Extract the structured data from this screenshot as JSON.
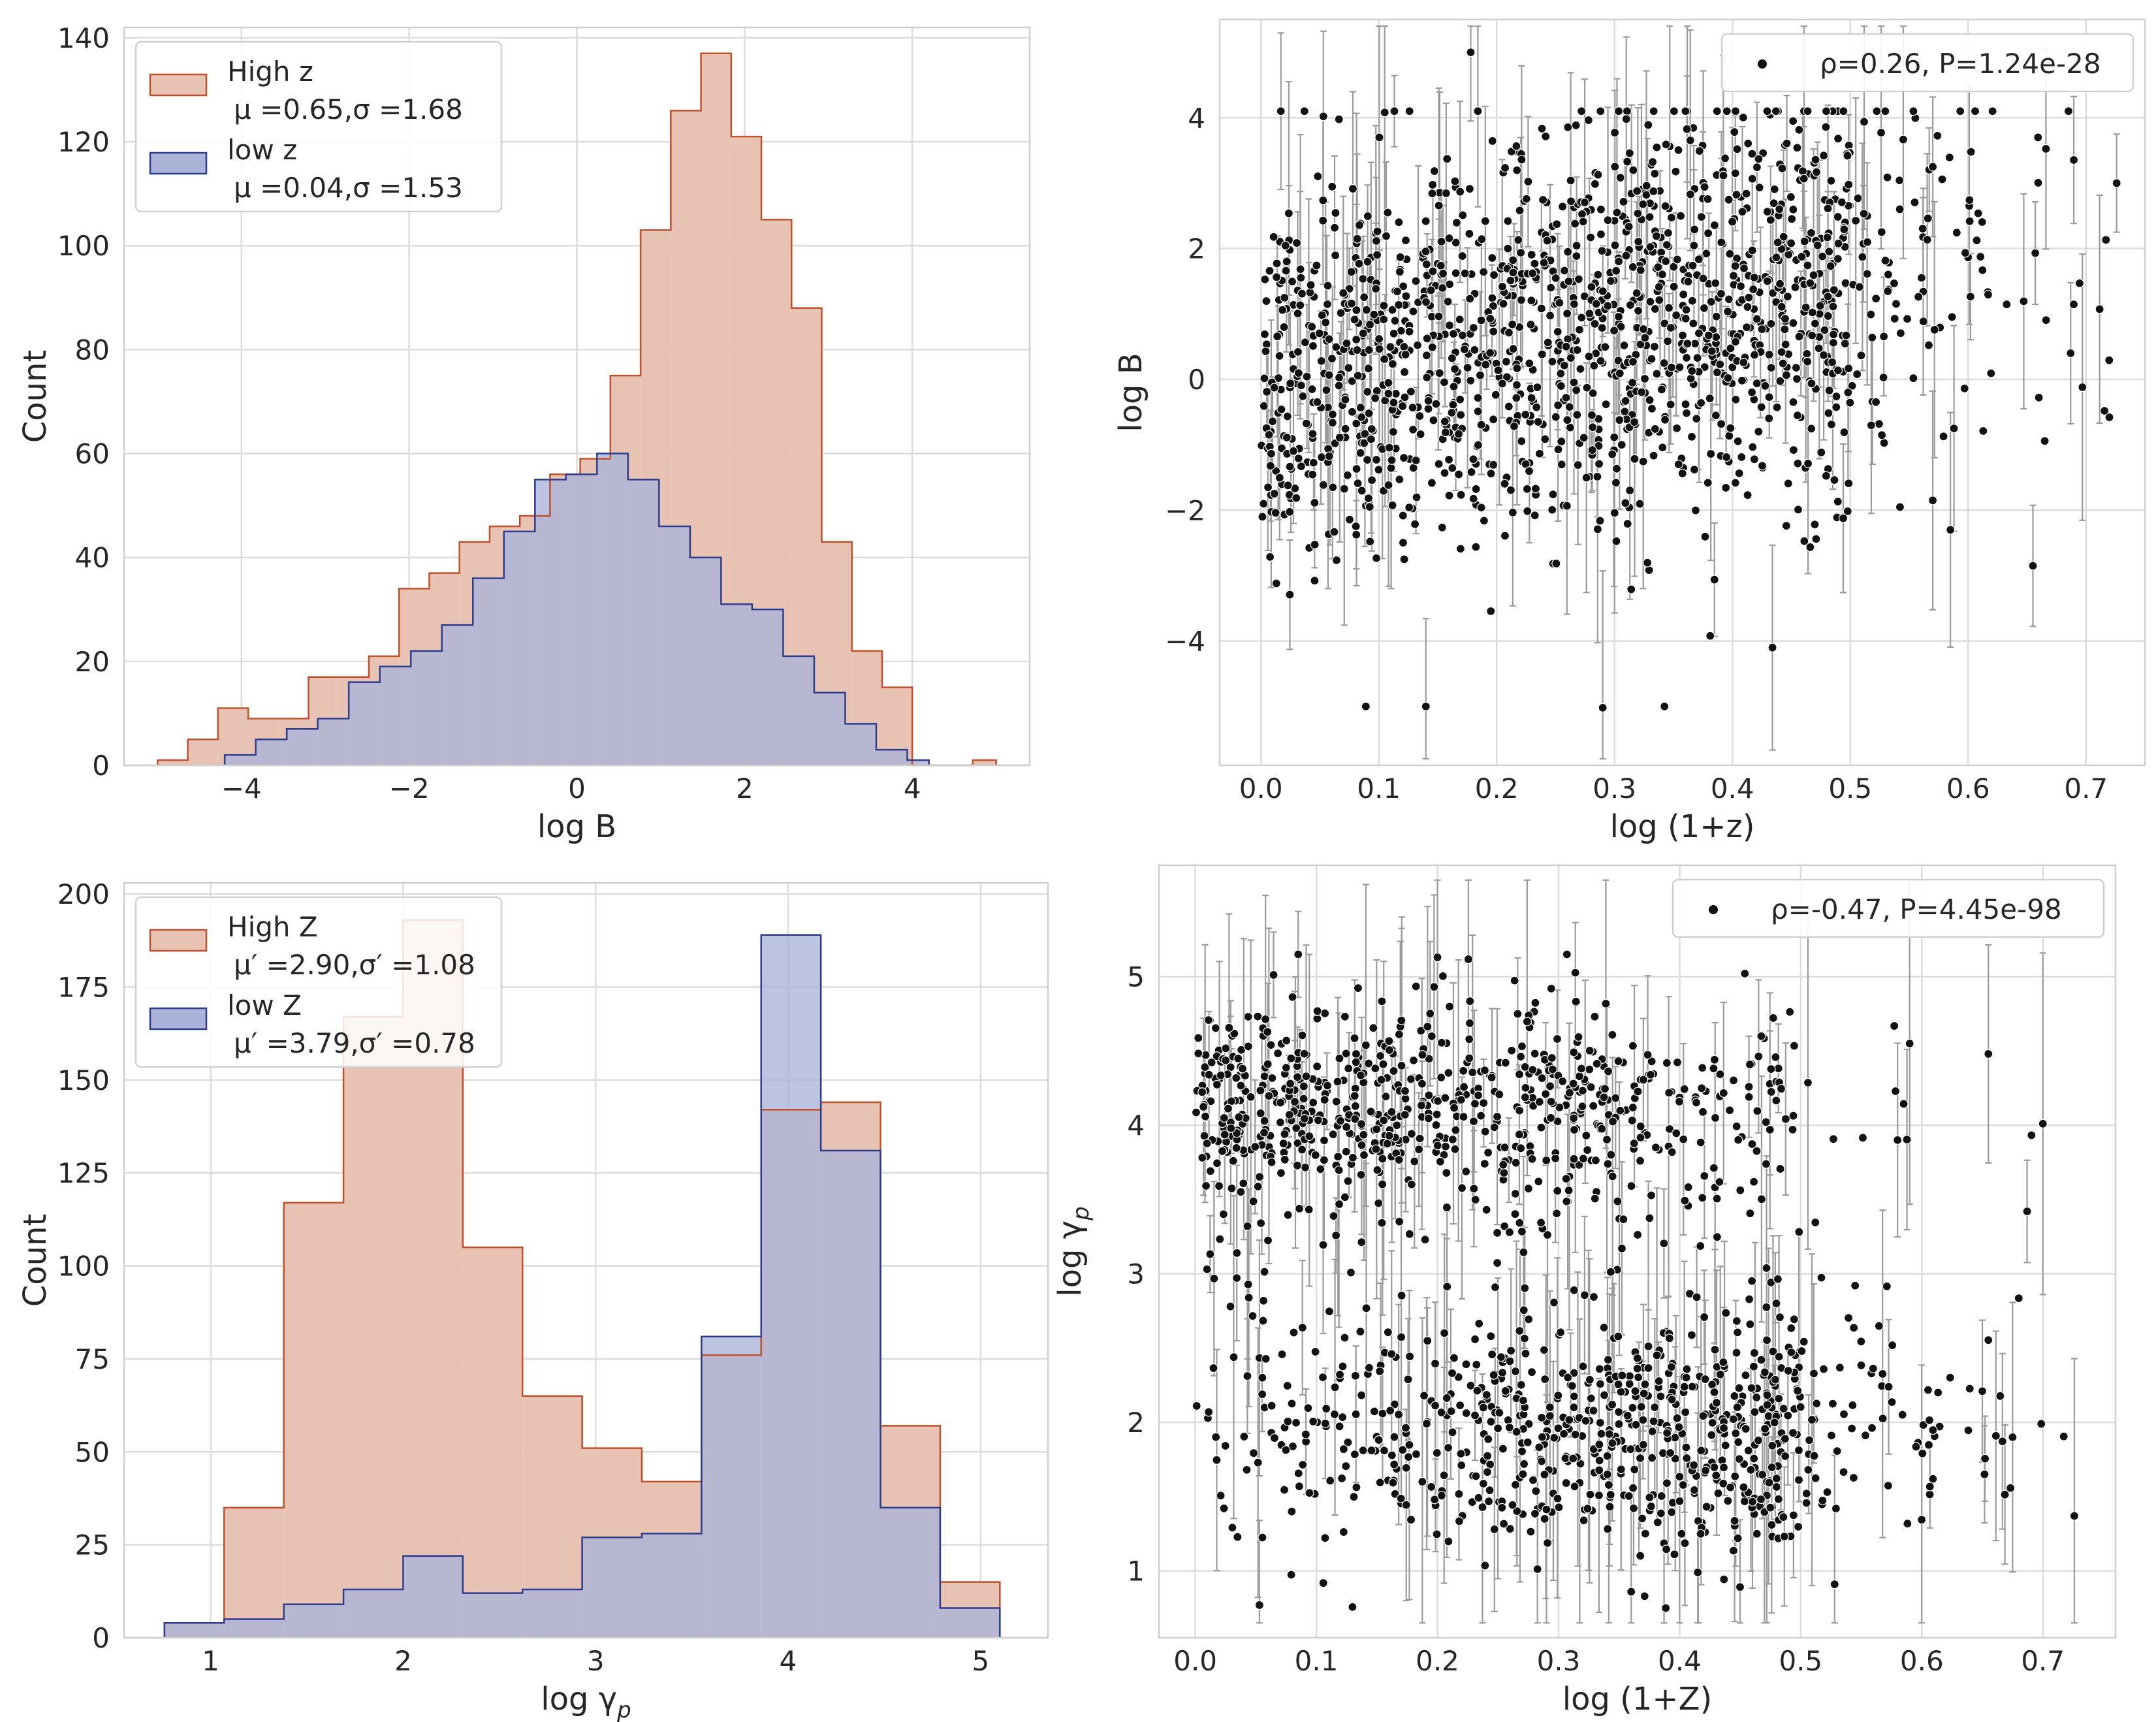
{
  "colors": {
    "high_fill": "#e8c3b4",
    "high_edge": "#c0502a",
    "low_fill": "#aab4d8",
    "low_edge": "#2c3d8f",
    "overlap": "#ab9aab",
    "point": "#111111",
    "errorbar": "#9a9a9a"
  },
  "chart_data": [
    {
      "id": "hist_logB",
      "type": "histogram",
      "xlabel": "log B",
      "ylabel": "Count",
      "xlim": [
        -5.4,
        5.4
      ],
      "ylim": [
        0,
        142
      ],
      "xticks": [
        -4,
        -2,
        0,
        2,
        4
      ],
      "xticklabels": [
        "−4",
        "−2",
        "0",
        "2",
        "4"
      ],
      "yticks": [
        0,
        20,
        40,
        60,
        80,
        100,
        120,
        140
      ],
      "yticklabels": [
        "0",
        "20",
        "40",
        "60",
        "80",
        "100",
        "120",
        "140"
      ],
      "legend_position": "upper left",
      "series": [
        {
          "name": "High z",
          "stat": "μ =0.65,σ =1.68",
          "edges": [
            -5.0,
            -4.64,
            -4.28,
            -3.92,
            -3.56,
            -3.2,
            -2.84,
            -2.48,
            -2.12,
            -1.76,
            -1.4,
            -1.04,
            -0.68,
            -0.32,
            0.04,
            0.4,
            0.76,
            1.12,
            1.48,
            1.84,
            2.2,
            2.56,
            2.92,
            3.28,
            3.64,
            4.0,
            4.36,
            4.72,
            5.0
          ],
          "counts": [
            1,
            5,
            11,
            9,
            9,
            17,
            17,
            21,
            34,
            37,
            43,
            46,
            48,
            56,
            59,
            75,
            103,
            126,
            137,
            121,
            105,
            88,
            43,
            22,
            15,
            0,
            0,
            1
          ]
        },
        {
          "name": "low z",
          "stat": "μ =0.04,σ =1.53",
          "edges": [
            -4.2,
            -3.83,
            -3.46,
            -3.09,
            -2.72,
            -2.35,
            -1.98,
            -1.61,
            -1.24,
            -0.87,
            -0.5,
            -0.13,
            0.24,
            0.61,
            0.98,
            1.35,
            1.72,
            2.09,
            2.46,
            2.83,
            3.2,
            3.57,
            3.94,
            4.2
          ],
          "counts": [
            2,
            5,
            7,
            9,
            16,
            19,
            22,
            27,
            36,
            45,
            55,
            56,
            60,
            55,
            46,
            40,
            31,
            30,
            21,
            14,
            8,
            3,
            1
          ]
        }
      ]
    },
    {
      "id": "scatter_logB",
      "type": "scatter",
      "xlabel": "log (1+z)",
      "ylabel": "log B",
      "xlim": [
        -0.035,
        0.75
      ],
      "ylim": [
        -5.9,
        5.5
      ],
      "xticks": [
        0.0,
        0.1,
        0.2,
        0.3,
        0.4,
        0.5,
        0.6,
        0.7
      ],
      "xticklabels": [
        "0.0",
        "0.1",
        "0.2",
        "0.3",
        "0.4",
        "0.5",
        "0.6",
        "0.7"
      ],
      "yticks": [
        -4,
        -2,
        0,
        2,
        4
      ],
      "yticklabels": [
        "−4",
        "−2",
        "0",
        "2",
        "4"
      ],
      "legend_label": "ρ=0.26, P=1.24e-28",
      "legend_position": "upper right",
      "n_points": 1500,
      "highlight_points": [
        [
          0.178,
          5.0
        ],
        [
          0.053,
          4.02
        ],
        [
          0.105,
          4.08
        ],
        [
          0.31,
          3.98
        ],
        [
          0.57,
          3.25
        ],
        [
          0.657,
          1.93
        ],
        [
          0.687,
          0.4
        ],
        [
          0.697,
          -0.12
        ],
        [
          0.726,
          3.0
        ],
        [
          0.585,
          -2.3
        ],
        [
          0.655,
          -2.85
        ],
        [
          0.434,
          -4.1
        ],
        [
          0.29,
          -5.02
        ],
        [
          0.57,
          -1.85
        ],
        [
          0.588,
          -0.75
        ]
      ]
    },
    {
      "id": "hist_gamma",
      "type": "histogram",
      "xlabel": "log γp",
      "ylabel": "Count",
      "xlim": [
        0.55,
        5.35
      ],
      "ylim": [
        0,
        203
      ],
      "xticks": [
        1,
        2,
        3,
        4,
        5
      ],
      "xticklabels": [
        "1",
        "2",
        "3",
        "4",
        "5"
      ],
      "yticks": [
        0,
        25,
        50,
        75,
        100,
        125,
        150,
        175,
        200
      ],
      "yticklabels": [
        "0",
        "25",
        "50",
        "75",
        "100",
        "125",
        "150",
        "175",
        "200"
      ],
      "legend_position": "upper left",
      "series": [
        {
          "name": "High Z",
          "stat": "μ′ =2.90,σ′ =1.08",
          "edges": [
            0.76,
            1.07,
            1.38,
            1.69,
            2.0,
            2.31,
            2.62,
            2.93,
            3.24,
            3.55,
            3.86,
            4.17,
            4.48,
            4.79,
            5.1
          ],
          "counts": [
            4,
            35,
            117,
            167,
            193,
            105,
            65,
            51,
            42,
            76,
            142,
            144,
            57,
            15
          ]
        },
        {
          "name": "low Z",
          "stat": "μ′ =3.79,σ′ =0.78",
          "edges": [
            0.76,
            1.07,
            1.38,
            1.69,
            2.0,
            2.31,
            2.62,
            2.93,
            3.24,
            3.55,
            3.86,
            4.17,
            4.48,
            4.79,
            5.1
          ],
          "counts": [
            4,
            5,
            9,
            13,
            22,
            12,
            13,
            27,
            28,
            81,
            189,
            131,
            35,
            8
          ]
        }
      ]
    },
    {
      "id": "scatter_gamma",
      "type": "scatter",
      "xlabel": "log (1+Z)",
      "ylabel": "log γp",
      "xlim": [
        -0.03,
        0.76
      ],
      "ylim": [
        0.55,
        5.75
      ],
      "xticks": [
        0.0,
        0.1,
        0.2,
        0.3,
        0.4,
        0.5,
        0.6,
        0.7
      ],
      "xticklabels": [
        "0.0",
        "0.1",
        "0.2",
        "0.3",
        "0.4",
        "0.5",
        "0.6",
        "0.7"
      ],
      "yticks": [
        1,
        2,
        3,
        4,
        5
      ],
      "yticklabels": [
        "1",
        "2",
        "3",
        "4",
        "5"
      ],
      "legend_label": "ρ=-0.47, P=4.45e-98",
      "legend_position": "upper right",
      "n_points": 1500,
      "highlight_points": [
        [
          0.655,
          4.48
        ],
        [
          0.7,
          4.01
        ],
        [
          0.687,
          3.42
        ],
        [
          0.726,
          1.37
        ],
        [
          0.675,
          1.9
        ],
        [
          0.65,
          2.21
        ],
        [
          0.59,
          4.55
        ],
        [
          0.58,
          3.9
        ],
        [
          0.053,
          0.77
        ],
        [
          0.528,
          0.91
        ],
        [
          0.36,
          0.86
        ],
        [
          0.415,
          0.99
        ],
        [
          0.085,
          5.15
        ],
        [
          0.2,
          5.13
        ]
      ]
    }
  ]
}
